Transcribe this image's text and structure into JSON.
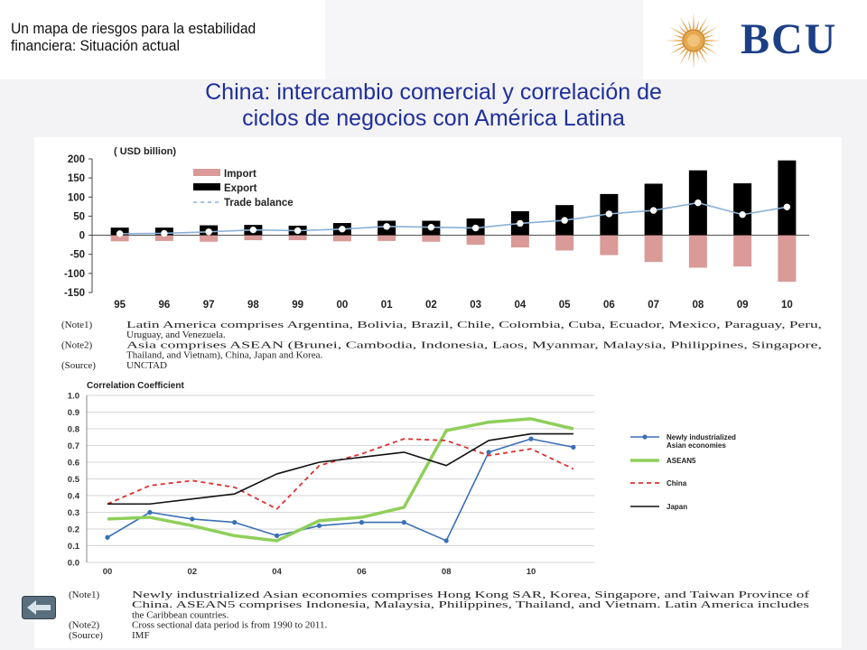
{
  "header": {
    "subtitle_line1": "Un mapa de riesgos para la estabilidad",
    "subtitle_line2": "financiera: Situación actual",
    "logo_text": "BCU",
    "logo_icon": "sun-icon"
  },
  "slide": {
    "title_line1": "China: intercambio comercial y correlación de",
    "title_line2": "ciclos de negocios con América Latina"
  },
  "nav": {
    "back_icon": "back-arrow-icon"
  },
  "chart_data": [
    {
      "type": "bar",
      "unit_label": "( USD billion)",
      "categories": [
        "95",
        "96",
        "97",
        "98",
        "99",
        "00",
        "01",
        "02",
        "03",
        "04",
        "05",
        "06",
        "07",
        "08",
        "09",
        "10"
      ],
      "ylim": [
        -150,
        200
      ],
      "yticks": [
        "200",
        "150",
        "100",
        "50",
        "0",
        "-50",
        "-100",
        "-150"
      ],
      "legend": [
        "Import",
        "Export",
        "Trade balance"
      ],
      "series": [
        {
          "name": "Import",
          "type": "bar",
          "color": "#d99a98",
          "values": [
            -16,
            -15,
            -17,
            -13,
            -13,
            -16,
            -15,
            -17,
            -25,
            -32,
            -40,
            -52,
            -70,
            -85,
            -82,
            -122
          ]
        },
        {
          "name": "Export",
          "type": "bar",
          "color": "#000000",
          "values": [
            20,
            20,
            26,
            27,
            25,
            32,
            38,
            38,
            44,
            63,
            79,
            108,
            135,
            170,
            136,
            196
          ]
        },
        {
          "name": "Trade balance",
          "type": "line",
          "color": "#8ab0d6",
          "values": [
            4,
            5,
            9,
            14,
            12,
            16,
            23,
            21,
            19,
            31,
            39,
            56,
            65,
            85,
            54,
            74
          ]
        }
      ],
      "notes": [
        [
          "(Note1)",
          "Latin America comprises Argentina, Bolivia, Brazil, Chile, Colombia, Cuba, Ecuador, Mexico, Paraguay, Peru,"
        ],
        [
          "",
          "Uruguay, and Venezuela."
        ],
        [
          "(Note2)",
          "Asia comprises ASEAN (Brunei, Cambodia, Indonesia, Laos, Myanmar, Malaysia, Philippines, Singapore,"
        ],
        [
          "",
          "Thailand, and Vietnam), China, Japan and Korea."
        ],
        [
          "(Source)",
          "UNCTAD"
        ]
      ]
    },
    {
      "type": "line",
      "title": "Correlation Coefficient",
      "x": [
        0,
        1,
        2,
        3,
        4,
        5,
        6,
        7,
        8,
        9,
        10,
        11
      ],
      "xtick_labels": [
        "00",
        "02",
        "04",
        "06",
        "08",
        "10"
      ],
      "xtick_positions": [
        0,
        2,
        4,
        6,
        8,
        10
      ],
      "ylim": [
        0,
        1.0
      ],
      "yticks": [
        "1.0",
        "0.9",
        "0.8",
        "0.7",
        "0.6",
        "0.5",
        "0.4",
        "0.3",
        "0.2",
        "0.1",
        "0.0"
      ],
      "grid": true,
      "legend_position": "right",
      "series": [
        {
          "name": "Newly industrialized Asian economies",
          "color": "#3a6fb5",
          "style": "solid-marker",
          "values": [
            0.15,
            0.3,
            0.26,
            0.24,
            0.16,
            0.22,
            0.24,
            0.24,
            0.13,
            0.66,
            0.74,
            0.69
          ]
        },
        {
          "name": "ASEAN5",
          "color": "#8fcf5a",
          "style": "thick-solid",
          "values": [
            0.26,
            0.27,
            0.22,
            0.16,
            0.13,
            0.25,
            0.27,
            0.33,
            0.79,
            0.84,
            0.86,
            0.8
          ]
        },
        {
          "name": "China",
          "color": "#e03030",
          "style": "dashed",
          "values": [
            0.35,
            0.46,
            0.49,
            0.45,
            0.32,
            0.58,
            0.65,
            0.74,
            0.73,
            0.64,
            0.68,
            0.56
          ]
        },
        {
          "name": "Japan",
          "color": "#111111",
          "style": "solid",
          "values": [
            0.35,
            0.35,
            0.38,
            0.41,
            0.53,
            0.6,
            0.63,
            0.66,
            0.58,
            0.73,
            0.77,
            0.77
          ]
        }
      ],
      "legend_lines": [
        [
          "Newly industrialized",
          "Asian economies"
        ],
        [
          "ASEAN5"
        ],
        [
          "China"
        ],
        [
          "Japan"
        ]
      ],
      "notes": [
        [
          "(Note1)",
          "Newly industrialized Asian economies comprises Hong Kong SAR, Korea, Singapore, and Taiwan Province of"
        ],
        [
          "",
          "China. ASEAN5 comprises Indonesia, Malaysia, Philippines, Thailand, and Vietnam.  Latin America includes"
        ],
        [
          "",
          "the Caribbean countries."
        ],
        [
          "(Note2)",
          "Cross sectional data period is from 1990 to 2011."
        ],
        [
          "(Source)",
          "IMF"
        ]
      ]
    }
  ]
}
